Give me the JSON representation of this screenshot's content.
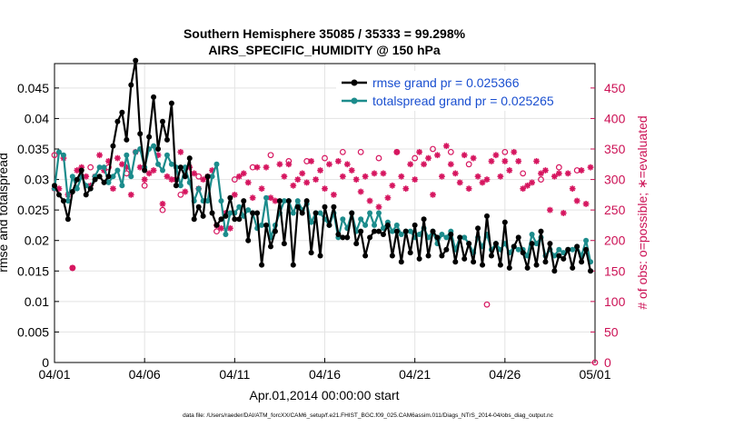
{
  "chart_data": {
    "type": "line",
    "title": "Southern Hemisphere 35085 / 35333 = 99.298%",
    "subtitle": "AIRS_SPECIFIC_HUMIDITY @ 150 hPa",
    "xlabel": "Apr.01,2014 00:00:00 start",
    "ylabel": "rmse and totalspread",
    "ylabel_right": "# of obs: o=possible; ∗=evaluated",
    "footer": "data file: /Users/raeder/DAI/ATM_forcXX/CAM6_setup/f.e21.FHIST_BGC.f09_025.CAM6assim.011/Diags_NTrS_2014-04/obs_diag_output.nc",
    "xlim": [
      0,
      30
    ],
    "ylim": [
      0,
      0.049
    ],
    "ylim_right": [
      0,
      490
    ],
    "grid": true,
    "legend_position": "top-right",
    "x_tick_labels": [
      "04/01",
      "04/06",
      "04/11",
      "04/16",
      "04/21",
      "04/26",
      "05/01"
    ],
    "x_tick_values": [
      0,
      5,
      10,
      15,
      20,
      25,
      30
    ],
    "y_ticks": [
      "0",
      "0.005",
      "0.01",
      "0.015",
      "0.02",
      "0.025",
      "0.03",
      "0.035",
      "0.04",
      "0.045"
    ],
    "y_tick_values": [
      0,
      0.005,
      0.01,
      0.015,
      0.02,
      0.025,
      0.03,
      0.035,
      0.04,
      0.045
    ],
    "y_ticks_right": [
      "0",
      "50",
      "100",
      "150",
      "200",
      "250",
      "300",
      "350",
      "400",
      "450"
    ],
    "y_tick_values_right": [
      0,
      50,
      100,
      150,
      200,
      250,
      300,
      350,
      400,
      450
    ],
    "x": [
      0.0,
      0.25,
      0.5,
      0.75,
      1.0,
      1.25,
      1.5,
      1.75,
      2.0,
      2.25,
      2.5,
      2.75,
      3.0,
      3.25,
      3.5,
      3.75,
      4.0,
      4.25,
      4.5,
      4.75,
      5.0,
      5.25,
      5.5,
      5.75,
      6.0,
      6.25,
      6.5,
      6.75,
      7.0,
      7.25,
      7.5,
      7.75,
      8.0,
      8.25,
      8.5,
      8.75,
      9.0,
      9.25,
      9.5,
      9.75,
      10.0,
      10.25,
      10.5,
      10.75,
      11.0,
      11.25,
      11.5,
      11.75,
      12.0,
      12.25,
      12.5,
      12.75,
      13.0,
      13.25,
      13.5,
      13.75,
      14.0,
      14.25,
      14.5,
      14.75,
      15.0,
      15.25,
      15.5,
      15.75,
      16.0,
      16.25,
      16.5,
      16.75,
      17.0,
      17.25,
      17.5,
      17.75,
      18.0,
      18.25,
      18.5,
      18.75,
      19.0,
      19.25,
      19.5,
      19.75,
      20.0,
      20.25,
      20.5,
      20.75,
      21.0,
      21.25,
      21.5,
      21.75,
      22.0,
      22.25,
      22.5,
      22.75,
      23.0,
      23.25,
      23.5,
      23.75,
      24.0,
      24.25,
      24.5,
      24.75,
      25.0,
      25.25,
      25.5,
      25.75,
      26.0,
      26.25,
      26.5,
      26.75,
      27.0,
      27.25,
      27.5,
      27.75,
      28.0,
      28.25,
      28.5,
      28.75,
      29.0,
      29.25,
      29.5,
      29.75
    ],
    "series": [
      {
        "name": "rmse grand pr = 0.025366",
        "color": "#000000",
        "marker": "filled-circle",
        "axis": "left",
        "values": [
          0.029,
          0.0275,
          0.0265,
          0.0235,
          0.028,
          0.03,
          0.0315,
          0.0275,
          0.0285,
          0.03,
          0.0305,
          0.0295,
          0.0305,
          0.0355,
          0.0395,
          0.041,
          0.0365,
          0.0455,
          0.0495,
          0.0375,
          0.0315,
          0.037,
          0.0435,
          0.035,
          0.0395,
          0.0365,
          0.0425,
          0.029,
          0.032,
          0.0305,
          0.0335,
          0.0235,
          0.0255,
          0.024,
          0.0305,
          0.0245,
          0.0225,
          0.0235,
          0.024,
          0.027,
          0.0235,
          0.0235,
          0.0265,
          0.02,
          0.0245,
          0.0245,
          0.016,
          0.0225,
          0.019,
          0.0215,
          0.0265,
          0.0195,
          0.0265,
          0.016,
          0.0255,
          0.0245,
          0.0265,
          0.018,
          0.0245,
          0.0175,
          0.0255,
          0.0225,
          0.0255,
          0.021,
          0.0205,
          0.0205,
          0.0245,
          0.0195,
          0.0215,
          0.0175,
          0.0205,
          0.0215,
          0.0215,
          0.021,
          0.0225,
          0.0175,
          0.0215,
          0.0165,
          0.0215,
          0.018,
          0.0225,
          0.017,
          0.0235,
          0.0175,
          0.0215,
          0.0205,
          0.0175,
          0.0185,
          0.021,
          0.0165,
          0.0205,
          0.017,
          0.0195,
          0.0165,
          0.022,
          0.016,
          0.024,
          0.0175,
          0.0195,
          0.016,
          0.023,
          0.0155,
          0.019,
          0.0205,
          0.018,
          0.0155,
          0.0195,
          0.016,
          0.0215,
          0.0165,
          0.0195,
          0.015,
          0.0175,
          0.017,
          0.0185,
          0.0155,
          0.019,
          0.0165,
          0.0185,
          0.015
        ]
      },
      {
        "name": "totalspread grand pr = 0.025265",
        "color": "#1c8c8c",
        "marker": "filled-circle",
        "axis": "left",
        "values": [
          0.0285,
          0.0345,
          0.034,
          0.0265,
          0.0305,
          0.0285,
          0.0305,
          0.029,
          0.0285,
          0.0305,
          0.032,
          0.032,
          0.0295,
          0.0305,
          0.0315,
          0.029,
          0.034,
          0.0305,
          0.0345,
          0.035,
          0.032,
          0.035,
          0.0355,
          0.0325,
          0.0315,
          0.034,
          0.0325,
          0.032,
          0.029,
          0.032,
          0.0295,
          0.0265,
          0.0285,
          0.0265,
          0.0265,
          0.0305,
          0.0325,
          0.0265,
          0.021,
          0.0245,
          0.0245,
          0.0255,
          0.024,
          0.025,
          0.0245,
          0.022,
          0.0225,
          0.027,
          0.0205,
          0.0225,
          0.0245,
          0.0265,
          0.0265,
          0.0245,
          0.0265,
          0.025,
          0.026,
          0.023,
          0.0245,
          0.0245,
          0.0235,
          0.0225,
          0.0245,
          0.0205,
          0.0235,
          0.022,
          0.0245,
          0.0215,
          0.0235,
          0.0225,
          0.0245,
          0.0225,
          0.0245,
          0.022,
          0.023,
          0.0215,
          0.0225,
          0.021,
          0.0215,
          0.0215,
          0.0205,
          0.021,
          0.022,
          0.0205,
          0.0215,
          0.0195,
          0.021,
          0.0205,
          0.0215,
          0.0185,
          0.0205,
          0.0205,
          0.0195,
          0.018,
          0.0205,
          0.019,
          0.021,
          0.0185,
          0.0195,
          0.0185,
          0.0195,
          0.018,
          0.019,
          0.0185,
          0.0185,
          0.0175,
          0.021,
          0.0195,
          0.0205,
          0.0175,
          0.0185,
          0.0175,
          0.0185,
          0.018,
          0.0185,
          0.0185,
          0.019,
          0.0175,
          0.02,
          0.0165
        ]
      }
    ],
    "obs_possible": {
      "name": "possible",
      "marker": "circle",
      "color": "#d6155f",
      "axis": "right",
      "x": [
        0,
        1,
        2,
        3,
        4,
        5,
        6,
        7,
        8,
        9,
        10,
        11,
        12,
        13,
        14,
        15,
        16,
        17,
        18,
        19,
        20,
        21,
        22,
        23,
        24,
        25,
        26,
        27,
        28,
        29,
        30
      ],
      "values": [
        340,
        155,
        320,
        320,
        310,
        290,
        250,
        275,
        305,
        215,
        300,
        320,
        340,
        330,
        330,
        335,
        345,
        345,
        335,
        345,
        335,
        350,
        345,
        325,
        95,
        345,
        310,
        300,
        320,
        315,
        0
      ]
    },
    "obs_evaluated": {
      "name": "evaluated",
      "marker": "asterisk",
      "color": "#d6155f",
      "axis": "right",
      "x": [
        0.0,
        0.25,
        0.5,
        0.75,
        1.0,
        1.25,
        1.5,
        1.75,
        2.0,
        2.25,
        2.5,
        2.75,
        3.0,
        3.25,
        3.5,
        3.75,
        4.0,
        4.25,
        4.5,
        4.75,
        5.0,
        5.25,
        5.5,
        5.75,
        6.0,
        6.25,
        6.5,
        6.75,
        7.0,
        7.25,
        7.5,
        7.75,
        8.0,
        8.25,
        8.5,
        8.75,
        9.0,
        9.25,
        9.5,
        9.75,
        10.0,
        10.25,
        10.5,
        10.75,
        11.0,
        11.25,
        11.5,
        11.75,
        12.0,
        12.25,
        12.5,
        12.75,
        13.0,
        13.25,
        13.5,
        13.75,
        14.0,
        14.25,
        14.5,
        14.75,
        15.0,
        15.25,
        15.5,
        15.75,
        16.0,
        16.25,
        16.5,
        16.75,
        17.0,
        17.25,
        17.5,
        17.75,
        18.0,
        18.25,
        18.5,
        18.75,
        19.0,
        19.25,
        19.5,
        19.75,
        20.0,
        20.25,
        20.5,
        20.75,
        21.0,
        21.25,
        21.5,
        21.75,
        22.0,
        22.25,
        22.5,
        22.75,
        23.0,
        23.25,
        23.5,
        23.75,
        24.0,
        24.25,
        24.5,
        24.75,
        25.0,
        25.25,
        25.5,
        25.75,
        26.0,
        26.25,
        26.5,
        26.75,
        27.0,
        27.25,
        27.5,
        27.75,
        28.0,
        28.25,
        28.5,
        28.75,
        29.0,
        29.25,
        29.5,
        29.75
      ],
      "values": [
        285,
        285,
        335,
        275,
        155,
        315,
        320,
        305,
        290,
        305,
        340,
        315,
        330,
        285,
        335,
        325,
        320,
        275,
        345,
        320,
        300,
        310,
        315,
        340,
        260,
        305,
        300,
        300,
        345,
        280,
        320,
        310,
        285,
        300,
        305,
        315,
        225,
        220,
        245,
        220,
        275,
        305,
        310,
        295,
        270,
        320,
        285,
        320,
        270,
        265,
        325,
        305,
        325,
        290,
        300,
        310,
        295,
        330,
        300,
        315,
        285,
        325,
        275,
        330,
        305,
        325,
        315,
        300,
        280,
        305,
        265,
        310,
        255,
        310,
        270,
        290,
        345,
        305,
        285,
        325,
        300,
        345,
        325,
        335,
        275,
        340,
        305,
        355,
        325,
        310,
        295,
        340,
        285,
        335,
        305,
        295,
        300,
        330,
        340,
        305,
        330,
        315,
        345,
        330,
        285,
        290,
        295,
        330,
        310,
        315,
        250,
        305,
        310,
        245,
        310,
        285,
        265,
        315,
        260,
        320
      ]
    }
  }
}
